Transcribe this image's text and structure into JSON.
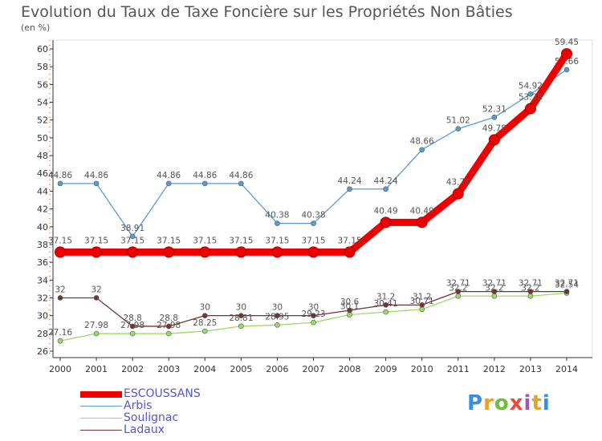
{
  "title": "Evolution du Taux de Taxe Foncière sur les Propriétés Non Bâties",
  "subtitle": "(en %)",
  "brand": "Proxiti",
  "chart_data": {
    "type": "line",
    "x": [
      "2000",
      "2001",
      "2002",
      "2003",
      "2004",
      "2005",
      "2006",
      "2007",
      "2008",
      "2009",
      "2010",
      "2011",
      "2012",
      "2013",
      "2014"
    ],
    "ylim": [
      26,
      60
    ],
    "yticks": [
      26,
      28,
      30,
      32,
      34,
      36,
      38,
      40,
      42,
      44,
      46,
      48,
      50,
      52,
      54,
      56,
      58,
      60
    ],
    "grid": false,
    "legend_position": "bottom-left",
    "series": [
      {
        "name": "Arbis",
        "color": "#5b9bd5",
        "values": [
          44.86,
          44.86,
          38.91,
          44.86,
          44.86,
          44.86,
          40.38,
          40.38,
          44.24,
          44.24,
          48.66,
          51.02,
          52.31,
          54.92,
          57.66
        ],
        "labels": [
          "44.86",
          "44.86",
          "38.91",
          "44.86",
          "44.86",
          "44.86",
          "40.38",
          "40.38",
          "44.24",
          "44.24",
          "48.66",
          "51.02",
          "52.31",
          "54.92",
          "57.66"
        ]
      },
      {
        "name": "Soulignac",
        "color": "#99dd66",
        "values": [
          27.16,
          27.98,
          27.98,
          27.98,
          28.25,
          28.81,
          28.95,
          29.23,
          30.1,
          30.41,
          30.71,
          32.2,
          32.2,
          32.2,
          32.54
        ],
        "labels": [
          "27.16",
          "27.98",
          "27.98",
          "27.98",
          "28.25",
          "28.81",
          "28.95",
          "29.23",
          "30.1",
          "30.41",
          "30.71",
          "32.2",
          "32.2",
          "32.2",
          "32.54"
        ]
      },
      {
        "name": "Ladaux",
        "color": "#773333",
        "values": [
          32,
          32,
          28.8,
          28.8,
          30,
          30,
          30,
          30,
          30.6,
          31.2,
          31.2,
          32.71,
          32.71,
          32.71,
          32.71
        ],
        "labels": [
          "32",
          "32",
          "28.8",
          "28.8",
          "30",
          "30",
          "30",
          "30",
          "30.6",
          "31.2",
          "31.2",
          "32.71",
          "32.71",
          "32.71",
          "32.71"
        ]
      },
      {
        "name": "ESCOUSSANS",
        "color": "#ee0000",
        "values": [
          37.15,
          37.15,
          37.15,
          37.15,
          37.15,
          37.15,
          37.15,
          37.15,
          37.15,
          40.49,
          40.49,
          43.71,
          49.78,
          53.28,
          59.45
        ],
        "labels": [
          "37.15",
          "37.15",
          "37.15",
          "37.15",
          "37.15",
          "37.15",
          "37.15",
          "37.15",
          "37.15",
          "40.49",
          "40.49",
          "43.71",
          "49.78",
          "53.28",
          "59.45"
        ]
      }
    ],
    "legend": [
      {
        "name": "ESCOUSSANS",
        "color": "#ee0000"
      },
      {
        "name": "Arbis",
        "color": "#5b9bd5"
      },
      {
        "name": "Soulignac",
        "color": "#99dd66"
      },
      {
        "name": "Ladaux",
        "color": "#773333"
      }
    ]
  }
}
